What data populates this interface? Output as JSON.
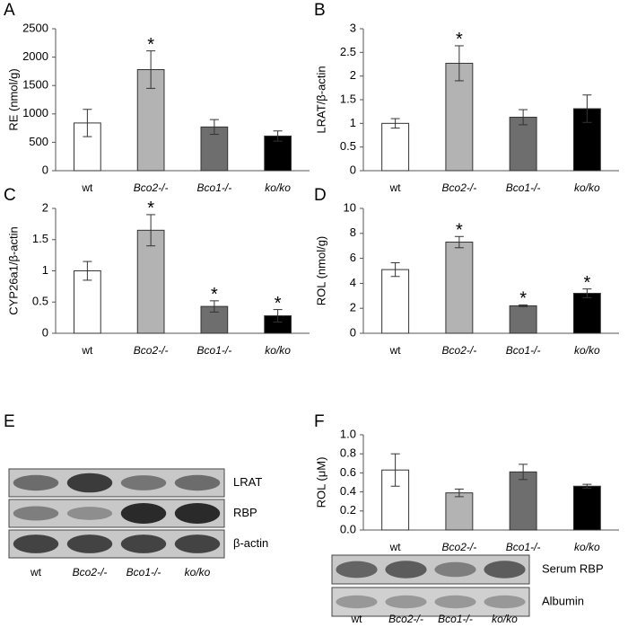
{
  "chart_data": [
    {
      "type": "bar",
      "letter": "A",
      "y_label": "RE (nmol/g)",
      "categories": [
        "wt",
        "Bco2-/-",
        "Bco1-/-",
        "ko/ko"
      ],
      "values": [
        840,
        1780,
        770,
        610
      ],
      "errors": [
        240,
        330,
        130,
        90
      ],
      "markers": [
        null,
        "*",
        null,
        null
      ],
      "colors": [
        "#ffffff",
        "#b3b3b3",
        "#6e6e6e",
        "#000000"
      ],
      "ylim": [
        0,
        2500
      ],
      "yticks": [
        0,
        500,
        1000,
        1500,
        2000,
        2500
      ]
    },
    {
      "type": "bar",
      "letter": "B",
      "y_label": "LRAT/β-actin",
      "categories": [
        "wt",
        "Bco2-/-",
        "Bco1-/-",
        "ko/ko"
      ],
      "values": [
        1.0,
        2.27,
        1.13,
        1.31
      ],
      "errors": [
        0.1,
        0.37,
        0.16,
        0.29
      ],
      "markers": [
        null,
        "*",
        null,
        null
      ],
      "colors": [
        "#ffffff",
        "#b3b3b3",
        "#6e6e6e",
        "#000000"
      ],
      "ylim": [
        0,
        3
      ],
      "yticks": [
        0,
        0.5,
        1,
        1.5,
        2,
        2.5,
        3
      ]
    },
    {
      "type": "bar",
      "letter": "C",
      "y_label": "CYP26a1/β-actin",
      "categories": [
        "wt",
        "Bco2-/-",
        "Bco1-/-",
        "ko/ko"
      ],
      "values": [
        1.0,
        1.65,
        0.43,
        0.28
      ],
      "errors": [
        0.15,
        0.25,
        0.09,
        0.1
      ],
      "markers": [
        null,
        "*",
        "*",
        "*"
      ],
      "colors": [
        "#ffffff",
        "#b3b3b3",
        "#6e6e6e",
        "#000000"
      ],
      "ylim": [
        0,
        2
      ],
      "yticks": [
        0,
        0.5,
        1,
        1.5,
        2
      ]
    },
    {
      "type": "bar",
      "letter": "D",
      "y_label": "ROL (nmol/g)",
      "categories": [
        "wt",
        "Bco2-/-",
        "Bco1-/-",
        "ko/ko"
      ],
      "values": [
        5.1,
        7.3,
        2.2,
        3.2
      ],
      "errors": [
        0.55,
        0.45,
        0.07,
        0.35
      ],
      "markers": [
        null,
        "*",
        "*",
        "*"
      ],
      "colors": [
        "#ffffff",
        "#b3b3b3",
        "#6e6e6e",
        "#000000"
      ],
      "ylim": [
        0,
        10
      ],
      "yticks": [
        0,
        2,
        4,
        6,
        8,
        10
      ]
    },
    {
      "type": "bar",
      "letter": "F",
      "y_label": "ROL (μM)",
      "categories": [
        "wt",
        "Bco2-/-",
        "Bco1-/-",
        "ko/ko"
      ],
      "values": [
        0.63,
        0.39,
        0.61,
        0.46
      ],
      "errors": [
        0.17,
        0.04,
        0.08,
        0.02
      ],
      "colors": [
        "#ffffff",
        "#b3b3b3",
        "#6e6e6e",
        "#000000"
      ],
      "ylim": [
        0,
        1
      ],
      "yticks": [
        {
          "value": 0,
          "label": "0.0"
        },
        {
          "value": 0.2,
          "label": "0.2"
        },
        {
          "value": 0.4,
          "label": "0.4"
        },
        {
          "value": 0.6,
          "label": "0.6"
        },
        {
          "value": 0.8,
          "label": "0.8"
        },
        {
          "value": 1,
          "label": "1.0"
        }
      ]
    }
  ],
  "blots": [
    {
      "letter": "E",
      "rows": [
        "LRAT",
        "RBP",
        "β-actin"
      ],
      "categories": [
        "wt",
        "Bco2-/-",
        "Bco1-/-",
        "ko/ko"
      ]
    },
    {
      "rows": [
        "Serum RBP",
        "Albumin"
      ],
      "categories": [
        "wt",
        "Bco2-/-",
        "Bco1-/-",
        "ko/ko"
      ]
    }
  ]
}
